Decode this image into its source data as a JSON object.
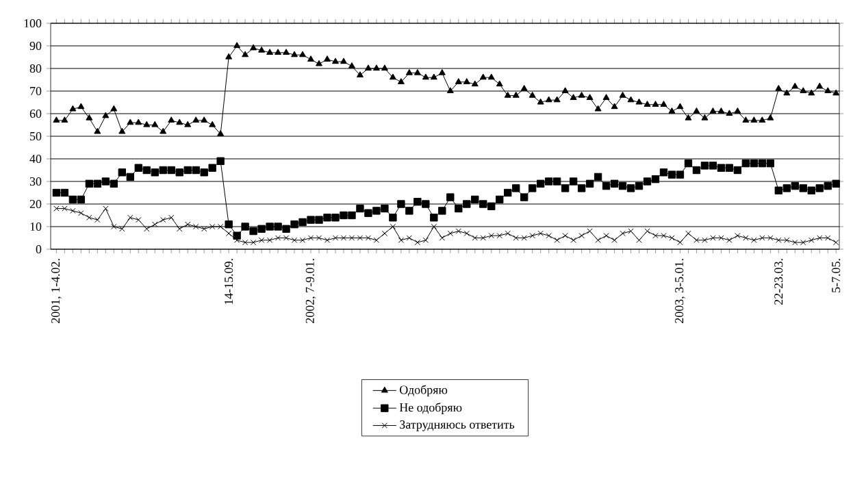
{
  "chart_data": {
    "type": "line",
    "categories": [
      "2001, 1-4.02.",
      null,
      null,
      null,
      null,
      null,
      null,
      null,
      null,
      null,
      null,
      null,
      null,
      null,
      null,
      null,
      null,
      null,
      null,
      null,
      null,
      "14-15.09.",
      null,
      null,
      null,
      null,
      null,
      null,
      null,
      null,
      null,
      "2002, 7-9.01.",
      null,
      null,
      null,
      null,
      null,
      null,
      null,
      null,
      null,
      null,
      null,
      null,
      null,
      null,
      null,
      null,
      null,
      null,
      null,
      null,
      null,
      null,
      null,
      null,
      null,
      null,
      null,
      null,
      null,
      null,
      null,
      null,
      null,
      null,
      null,
      null,
      null,
      null,
      null,
      null,
      null,
      null,
      null,
      null,
      "2003, 3-5.01.",
      null,
      null,
      null,
      null,
      null,
      null,
      null,
      null,
      null,
      null,
      null,
      "22-23.03.",
      null,
      null,
      null,
      null,
      null,
      null,
      "5-7.05."
    ],
    "series": [
      {
        "name": "Одобряю",
        "color": "#000000",
        "marker": "triangle",
        "values": [
          57,
          57,
          62,
          63,
          58,
          52,
          59,
          62,
          52,
          56,
          56,
          55,
          55,
          52,
          57,
          56,
          55,
          57,
          57,
          55,
          51,
          85,
          90,
          86,
          89,
          88,
          87,
          87,
          87,
          86,
          86,
          84,
          82,
          84,
          83,
          83,
          81,
          77,
          80,
          80,
          80,
          76,
          74,
          78,
          78,
          76,
          76,
          78,
          70,
          74,
          74,
          73,
          76,
          76,
          73,
          68,
          68,
          71,
          68,
          65,
          66,
          66,
          70,
          67,
          68,
          67,
          62,
          67,
          63,
          68,
          66,
          65,
          64,
          64,
          64,
          61,
          63,
          58,
          61,
          58,
          61,
          61,
          60,
          61,
          57,
          57,
          57,
          58,
          71,
          69,
          72,
          70,
          69,
          72,
          70,
          69
        ]
      },
      {
        "name": "Не одобряю",
        "color": "#000000",
        "marker": "square",
        "values": [
          25,
          25,
          22,
          22,
          29,
          29,
          30,
          29,
          34,
          32,
          36,
          35,
          34,
          35,
          35,
          34,
          35,
          35,
          34,
          36,
          39,
          11,
          6,
          10,
          8,
          9,
          10,
          10,
          9,
          11,
          12,
          13,
          13,
          14,
          14,
          15,
          15,
          18,
          16,
          17,
          18,
          14,
          20,
          17,
          21,
          20,
          14,
          17,
          23,
          18,
          20,
          22,
          20,
          19,
          22,
          25,
          27,
          23,
          27,
          29,
          30,
          30,
          27,
          30,
          27,
          29,
          32,
          28,
          29,
          28,
          27,
          28,
          30,
          31,
          34,
          33,
          33,
          38,
          35,
          37,
          37,
          36,
          36,
          35,
          38,
          38,
          38,
          38,
          26,
          27,
          28,
          27,
          26,
          27,
          28,
          29
        ]
      },
      {
        "name": "Затрудняюсь ответить",
        "color": "#000000",
        "marker": "cross",
        "values": [
          18,
          18,
          17,
          16,
          14,
          13,
          18,
          10,
          9,
          14,
          13,
          9,
          11,
          13,
          14,
          9,
          11,
          10,
          9,
          10,
          10,
          7,
          4,
          3,
          3,
          4,
          4,
          5,
          5,
          4,
          4,
          5,
          5,
          4,
          5,
          5,
          5,
          5,
          5,
          4,
          7,
          10,
          4,
          5,
          3,
          4,
          10,
          5,
          7,
          8,
          7,
          5,
          5,
          6,
          6,
          7,
          5,
          5,
          6,
          7,
          6,
          4,
          6,
          4,
          6,
          8,
          4,
          6,
          4,
          7,
          8,
          4,
          8,
          6,
          6,
          5,
          3,
          7,
          4,
          4,
          5,
          5,
          4,
          6,
          5,
          4,
          5,
          5,
          4,
          4,
          3,
          3,
          4,
          5,
          5,
          3
        ]
      }
    ],
    "ylim": [
      0,
      100
    ],
    "yticks": [
      0,
      10,
      20,
      30,
      40,
      50,
      60,
      70,
      80,
      90,
      100
    ],
    "grid": "y",
    "legend": "bottom",
    "line_style": "solid"
  }
}
